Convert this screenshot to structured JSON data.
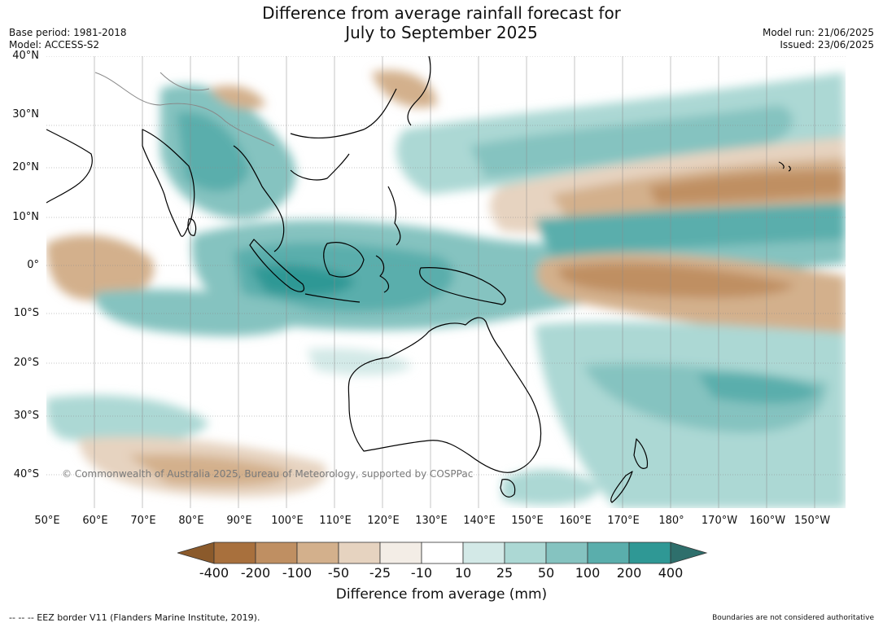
{
  "title_line1": "Difference from average rainfall forecast for",
  "title_line2": "July to September 2025",
  "base_period": "Base period: 1981-2018",
  "model": "Model: ACCESS-S2",
  "model_run": "Model run: 21/06/2025",
  "issued": "Issued: 23/06/2025",
  "lat_labels": [
    "40°N",
    "30°N",
    "20°N",
    "10°N",
    "0°",
    "10°S",
    "20°S",
    "30°S",
    "40°S"
  ],
  "lon_labels": [
    "50°E",
    "60°E",
    "70°E",
    "80°E",
    "90°E",
    "100°E",
    "110°E",
    "120°E",
    "130°E",
    "140°E",
    "150°E",
    "160°E",
    "170°E",
    "180°",
    "170°W",
    "160°W",
    "150°W"
  ],
  "copyright": "© Commonwealth of Australia 2025, Bureau of Meteorology, supported by COSPPac",
  "colorbar": {
    "title": "Difference from average (mm)",
    "ticks": [
      "-400",
      "-200",
      "-100",
      "-50",
      "-25",
      "-10",
      "10",
      "25",
      "50",
      "100",
      "200",
      "400"
    ],
    "colors": [
      "#8b5a2b",
      "#a8703d",
      "#bf8f62",
      "#d3b08c",
      "#e6d3c0",
      "#f3ede6",
      "#ffffff",
      "#d3e9e7",
      "#acd8d4",
      "#85c3c0",
      "#5aaeac",
      "#2f9895",
      "#2e6f6c"
    ]
  },
  "eez_note": "--  --  -- EEZ border V11 (Flanders Marine Institute, 2019).",
  "disclaimer": "Boundaries are not considered authoritative"
}
